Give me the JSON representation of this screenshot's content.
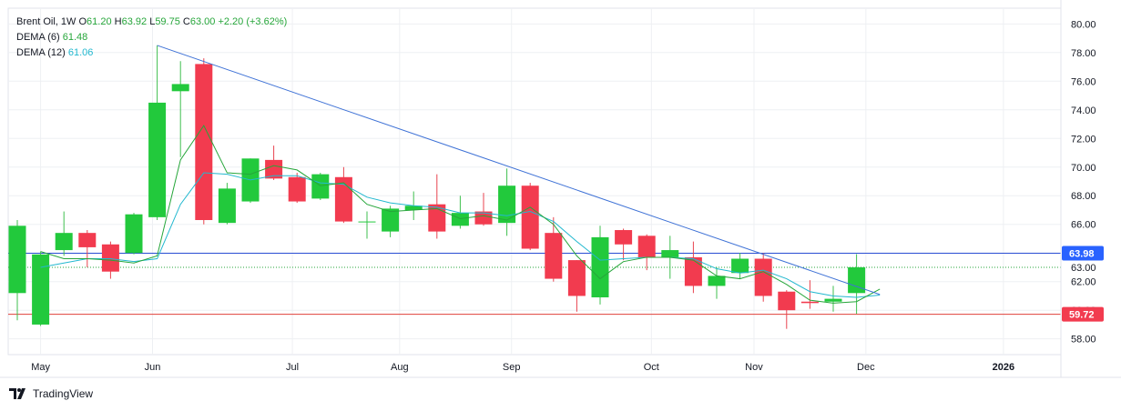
{
  "legend": {
    "symbol": "Brent Oil",
    "interval": "1W",
    "open_label": "O",
    "open": "61.20",
    "high_label": "H",
    "high": "63.92",
    "low_label": "L",
    "low": "59.75",
    "close_label": "C",
    "close": "63.00",
    "change": "+2.20 (+3.62%)",
    "dema6_label": "DEMA (6)",
    "dema6_value": "61.48",
    "dema12_label": "DEMA (12)",
    "dema12_value": "61.06"
  },
  "brand": {
    "name": "TradingView",
    "icon": "tradingview-logo-icon"
  },
  "colors": {
    "up": "#22c93c",
    "down": "#f23b4f",
    "wick_up": "#3fbf4f",
    "wick_down": "#e8434f",
    "dema6": "#26a63a",
    "dema12": "#22b8cf",
    "trendline": "#3f72d6",
    "resistance": "#2c4fd4",
    "support": "#e0403a",
    "price_line": "#26a63a",
    "grid": "#eef0f3",
    "badge_blue": "#2962ff",
    "badge_red": "#f23b4f",
    "badge_green": "#22c93c"
  },
  "chart_data": {
    "type": "candlestick",
    "x_labels": [
      "May",
      "Jun",
      "Jul",
      "Aug",
      "Sep",
      "Oct",
      "Nov",
      "Dec",
      "2026"
    ],
    "y_ticks": [
      "58.00",
      "60.00",
      "62.00",
      "64.00",
      "66.00",
      "68.00",
      "70.00",
      "72.00",
      "74.00",
      "76.00",
      "78.00",
      "80.00"
    ],
    "ylim": [
      56.9,
      81.1
    ],
    "candles": [
      {
        "o": 61.2,
        "h": 66.3,
        "l": 59.3,
        "c": 65.9
      },
      {
        "o": 59.0,
        "h": 64.1,
        "l": 58.9,
        "c": 63.9
      },
      {
        "o": 64.2,
        "h": 66.9,
        "l": 63.8,
        "c": 65.4
      },
      {
        "o": 65.4,
        "h": 65.6,
        "l": 63.0,
        "c": 64.4
      },
      {
        "o": 64.6,
        "h": 64.8,
        "l": 62.2,
        "c": 62.7
      },
      {
        "o": 64.0,
        "h": 66.8,
        "l": 63.9,
        "c": 66.7
      },
      {
        "o": 66.5,
        "h": 78.5,
        "l": 66.3,
        "c": 74.5
      },
      {
        "o": 75.3,
        "h": 77.4,
        "l": 70.7,
        "c": 75.8
      },
      {
        "o": 77.2,
        "h": 77.6,
        "l": 66.0,
        "c": 66.3
      },
      {
        "o": 66.1,
        "h": 68.9,
        "l": 66.0,
        "c": 68.5
      },
      {
        "o": 67.6,
        "h": 70.6,
        "l": 67.5,
        "c": 70.6
      },
      {
        "o": 70.5,
        "h": 71.5,
        "l": 69.1,
        "c": 69.2
      },
      {
        "o": 69.3,
        "h": 69.6,
        "l": 67.5,
        "c": 67.6
      },
      {
        "o": 67.8,
        "h": 69.6,
        "l": 67.7,
        "c": 69.5
      },
      {
        "o": 69.3,
        "h": 70.0,
        "l": 66.1,
        "c": 66.2
      },
      {
        "o": 66.2,
        "h": 66.9,
        "l": 65.0,
        "c": 66.2
      },
      {
        "o": 65.5,
        "h": 67.3,
        "l": 65.1,
        "c": 67.1
      },
      {
        "o": 67.0,
        "h": 68.3,
        "l": 66.3,
        "c": 67.3
      },
      {
        "o": 67.4,
        "h": 69.5,
        "l": 65.0,
        "c": 65.5
      },
      {
        "o": 65.9,
        "h": 68.0,
        "l": 65.7,
        "c": 66.8
      },
      {
        "o": 66.9,
        "h": 68.2,
        "l": 65.9,
        "c": 66.0
      },
      {
        "o": 66.1,
        "h": 69.9,
        "l": 65.2,
        "c": 68.7
      },
      {
        "o": 68.7,
        "h": 68.9,
        "l": 64.2,
        "c": 64.3
      },
      {
        "o": 65.4,
        "h": 66.5,
        "l": 62.0,
        "c": 62.2
      },
      {
        "o": 63.5,
        "h": 63.5,
        "l": 59.9,
        "c": 61.0
      },
      {
        "o": 60.9,
        "h": 65.9,
        "l": 60.4,
        "c": 65.1
      },
      {
        "o": 65.6,
        "h": 65.7,
        "l": 63.5,
        "c": 64.6
      },
      {
        "o": 65.2,
        "h": 65.3,
        "l": 62.8,
        "c": 63.7
      },
      {
        "o": 63.7,
        "h": 65.2,
        "l": 62.2,
        "c": 64.2
      },
      {
        "o": 63.7,
        "h": 64.8,
        "l": 61.2,
        "c": 61.7
      },
      {
        "o": 61.7,
        "h": 63.0,
        "l": 60.8,
        "c": 62.4
      },
      {
        "o": 62.6,
        "h": 64.0,
        "l": 62.2,
        "c": 63.6
      },
      {
        "o": 63.6,
        "h": 64.0,
        "l": 60.6,
        "c": 61.0
      },
      {
        "o": 61.3,
        "h": 61.4,
        "l": 58.7,
        "c": 60.0
      },
      {
        "o": 60.6,
        "h": 62.1,
        "l": 60.1,
        "c": 60.5
      },
      {
        "o": 60.6,
        "h": 61.7,
        "l": 59.9,
        "c": 60.8
      },
      {
        "o": 61.2,
        "h": 63.92,
        "l": 59.75,
        "c": 63.0
      }
    ],
    "dema6": [
      64.1,
      63.6,
      63.6,
      63.5,
      63.3,
      63.8,
      70.5,
      72.9,
      69.6,
      69.5,
      70.1,
      69.8,
      68.7,
      68.9,
      67.4,
      66.9,
      67.0,
      67.1,
      66.4,
      66.6,
      66.3,
      67.2,
      66.0,
      63.8,
      62.2,
      63.4,
      63.7,
      63.7,
      63.5,
      62.4,
      62.2,
      62.7,
      61.8,
      60.7,
      60.5,
      60.6,
      61.48
    ],
    "dema12": [
      63.0,
      63.3,
      63.6,
      63.6,
      63.4,
      63.6,
      67.4,
      69.6,
      69.5,
      69.1,
      69.4,
      69.4,
      68.9,
      68.8,
      67.9,
      67.5,
      67.3,
      67.2,
      66.8,
      66.8,
      66.6,
      66.9,
      66.2,
      64.8,
      63.5,
      63.6,
      63.7,
      63.7,
      63.6,
      62.9,
      62.6,
      62.8,
      62.2,
      61.3,
      61.0,
      60.9,
      61.06
    ],
    "trendline": {
      "from_bar": 6,
      "from_value": 78.5,
      "to_bar": 37,
      "to_value": 61.1
    },
    "resistance_level": 63.98,
    "support_level": 59.72,
    "current_close": 63.0,
    "price_badges": [
      {
        "label": "63.98",
        "value": 63.98,
        "color": "blue"
      },
      {
        "label": "63.00",
        "value": 63.0,
        "color": "none"
      },
      {
        "label": "59.72",
        "value": 59.72,
        "color": "red"
      }
    ],
    "grid": true
  }
}
